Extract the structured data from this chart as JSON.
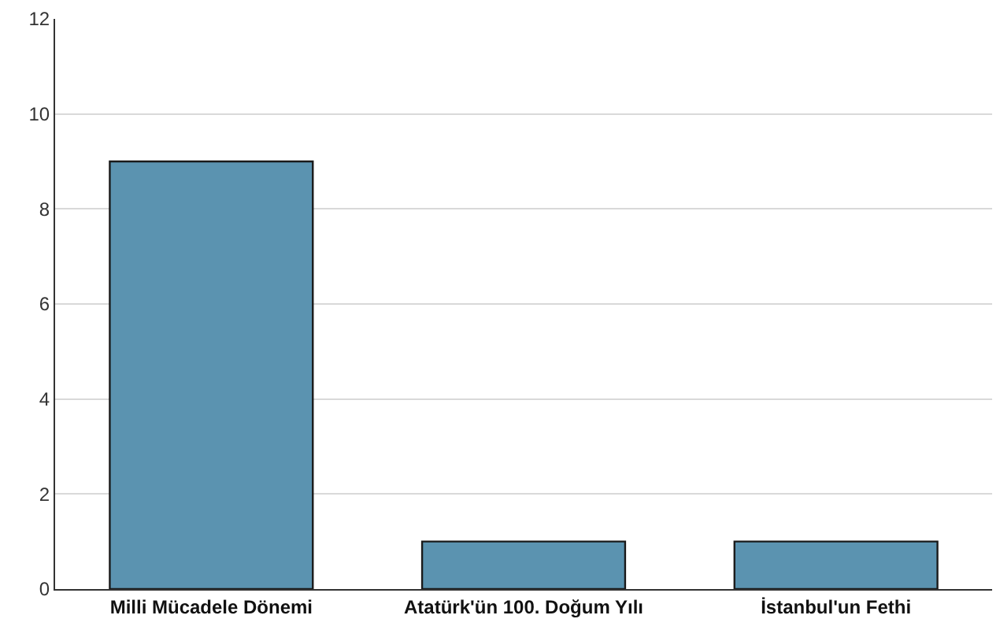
{
  "chart_data": {
    "type": "bar",
    "categories": [
      "Milli Mücadele Dönemi",
      "Atatürk'ün 100. Doğum Yılı",
      "İstanbul'un Fethi"
    ],
    "values": [
      9,
      1,
      1
    ],
    "color": "#5b93b0",
    "ylim": [
      0,
      12
    ],
    "yticks": [
      0,
      2,
      4,
      6,
      8,
      10,
      12
    ],
    "grid": "y"
  }
}
